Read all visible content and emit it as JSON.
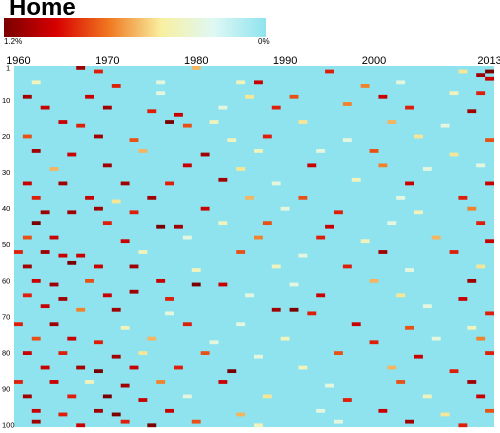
{
  "chart_data": {
    "type": "heatmap",
    "title": "Home",
    "colorbar": {
      "max_label": "1.2%",
      "min_label": "0%",
      "min_value": 0,
      "max_value": 1.2,
      "colors": [
        "#7a0000",
        "#d80000",
        "#f07820",
        "#f8f0a0",
        "#dff8f4",
        "#8fe3ee"
      ]
    },
    "x_range": [
      1960,
      2013
    ],
    "x_tick_labels": [
      {
        "label": "1960",
        "value": 1960
      },
      {
        "label": "1970",
        "value": 1970
      },
      {
        "label": "1980",
        "value": 1980
      },
      {
        "label": "1990",
        "value": 1990
      },
      {
        "label": "2000",
        "value": 2000
      },
      {
        "label": "2013",
        "value": 2013
      }
    ],
    "y_range": [
      1,
      100
    ],
    "y_tick_labels": [
      {
        "label": "1",
        "value": 1
      },
      {
        "label": "10",
        "value": 10
      },
      {
        "label": "20",
        "value": 20
      },
      {
        "label": "30",
        "value": 30
      },
      {
        "label": "40",
        "value": 40
      },
      {
        "label": "50",
        "value": 50
      },
      {
        "label": "60",
        "value": 60
      },
      {
        "label": "70",
        "value": 70
      },
      {
        "label": "80",
        "value": 80
      },
      {
        "label": "90",
        "value": 90
      },
      {
        "label": "100",
        "value": 100
      }
    ],
    "background_color": "#8fe3ee",
    "cells": [
      [
        1967,
        1,
        1.1
      ],
      [
        1969,
        2,
        0.9
      ],
      [
        1980,
        1,
        0.6
      ],
      [
        1995,
        2,
        0.9
      ],
      [
        2010,
        2,
        0.5
      ],
      [
        2012,
        3,
        1.1
      ],
      [
        2013,
        2,
        1.2
      ],
      [
        2013,
        4,
        1.0
      ],
      [
        1962,
        5,
        0.4
      ],
      [
        1976,
        5,
        0.3
      ],
      [
        1985,
        5,
        0.4
      ],
      [
        1971,
        6,
        0.9
      ],
      [
        1987,
        5,
        1.0
      ],
      [
        1999,
        6,
        0.7
      ],
      [
        2003,
        5,
        0.3
      ],
      [
        1961,
        9,
        1.1
      ],
      [
        1968,
        9,
        1.0
      ],
      [
        1976,
        8,
        0.3
      ],
      [
        1986,
        9,
        0.5
      ],
      [
        1991,
        9,
        0.8
      ],
      [
        2001,
        9,
        1.0
      ],
      [
        2009,
        8,
        0.4
      ],
      [
        2012,
        8,
        0.9
      ],
      [
        1963,
        12,
        1.0
      ],
      [
        1970,
        12,
        1.1
      ],
      [
        1975,
        13,
        0.9
      ],
      [
        1978,
        14,
        1.0
      ],
      [
        1983,
        12,
        0.3
      ],
      [
        1989,
        12,
        0.9
      ],
      [
        1997,
        11,
        0.7
      ],
      [
        2004,
        12,
        0.9
      ],
      [
        2011,
        13,
        1.1
      ],
      [
        1965,
        16,
        1.0
      ],
      [
        1967,
        17,
        0.9
      ],
      [
        1977,
        16,
        1.2
      ],
      [
        1979,
        17,
        0.8
      ],
      [
        1982,
        16,
        0.4
      ],
      [
        1992,
        16,
        0.5
      ],
      [
        2002,
        16,
        0.6
      ],
      [
        2008,
        17,
        0.3
      ],
      [
        1961,
        20,
        0.8
      ],
      [
        1969,
        20,
        1.1
      ],
      [
        1973,
        21,
        0.8
      ],
      [
        1984,
        21,
        0.4
      ],
      [
        1988,
        20,
        0.9
      ],
      [
        1997,
        21,
        0.3
      ],
      [
        2005,
        20,
        0.5
      ],
      [
        2013,
        21,
        0.8
      ],
      [
        1962,
        24,
        1.1
      ],
      [
        1966,
        25,
        1.0
      ],
      [
        1974,
        24,
        0.6
      ],
      [
        1981,
        25,
        1.1
      ],
      [
        1987,
        24,
        0.4
      ],
      [
        1994,
        24,
        0.3
      ],
      [
        2000,
        24,
        0.8
      ],
      [
        2009,
        25,
        0.5
      ],
      [
        1964,
        29,
        0.6
      ],
      [
        1970,
        28,
        1.1
      ],
      [
        1979,
        28,
        1.0
      ],
      [
        1985,
        29,
        0.5
      ],
      [
        1993,
        28,
        1.0
      ],
      [
        2001,
        28,
        0.7
      ],
      [
        2006,
        29,
        0.3
      ],
      [
        2012,
        28,
        0.3
      ],
      [
        1961,
        33,
        1.0
      ],
      [
        1965,
        33,
        1.1
      ],
      [
        1972,
        33,
        1.1
      ],
      [
        1977,
        33,
        0.9
      ],
      [
        1983,
        32,
        1.1
      ],
      [
        1989,
        33,
        0.3
      ],
      [
        1998,
        32,
        0.4
      ],
      [
        2004,
        33,
        1.0
      ],
      [
        2013,
        33,
        1.0
      ],
      [
        1962,
        37,
        0.9
      ],
      [
        1968,
        37,
        1.0
      ],
      [
        1971,
        38,
        0.5
      ],
      [
        1975,
        37,
        1.1
      ],
      [
        1986,
        37,
        0.6
      ],
      [
        1992,
        37,
        0.8
      ],
      [
        2003,
        37,
        0.3
      ],
      [
        2010,
        37,
        0.9
      ],
      [
        1963,
        41,
        1.1
      ],
      [
        1966,
        41,
        1.1
      ],
      [
        1969,
        40,
        1.1
      ],
      [
        1973,
        41,
        0.9
      ],
      [
        1981,
        40,
        1.0
      ],
      [
        1990,
        40,
        0.3
      ],
      [
        1996,
        41,
        0.9
      ],
      [
        2005,
        41,
        0.4
      ],
      [
        2011,
        40,
        0.7
      ],
      [
        1962,
        44,
        1.2
      ],
      [
        1970,
        44,
        0.9
      ],
      [
        1976,
        45,
        1.2
      ],
      [
        1978,
        45,
        1.1
      ],
      [
        1983,
        44,
        0.4
      ],
      [
        1988,
        44,
        0.8
      ],
      [
        1995,
        45,
        1.0
      ],
      [
        2002,
        44,
        0.3
      ],
      [
        2012,
        44,
        0.9
      ],
      [
        1961,
        48,
        0.8
      ],
      [
        1964,
        48,
        1.0
      ],
      [
        1972,
        49,
        1.0
      ],
      [
        1979,
        48,
        0.3
      ],
      [
        1987,
        48,
        0.7
      ],
      [
        1994,
        48,
        0.9
      ],
      [
        1999,
        49,
        0.4
      ],
      [
        2007,
        48,
        0.6
      ],
      [
        2013,
        49,
        1.0
      ],
      [
        1960,
        52,
        0.9
      ],
      [
        1963,
        52,
        1.1
      ],
      [
        1965,
        53,
        1.0
      ],
      [
        1967,
        53,
        1.0
      ],
      [
        1974,
        52,
        0.4
      ],
      [
        1985,
        52,
        0.8
      ],
      [
        1992,
        53,
        0.3
      ],
      [
        2001,
        52,
        1.1
      ],
      [
        2009,
        52,
        0.9
      ],
      [
        1961,
        56,
        1.1
      ],
      [
        1966,
        55,
        1.2
      ],
      [
        1969,
        56,
        1.0
      ],
      [
        1973,
        56,
        1.1
      ],
      [
        1980,
        57,
        0.4
      ],
      [
        1989,
        56,
        0.4
      ],
      [
        1997,
        56,
        0.9
      ],
      [
        2004,
        57,
        0.3
      ],
      [
        2012,
        56,
        0.5
      ],
      [
        1962,
        60,
        1.0
      ],
      [
        1964,
        61,
        1.1
      ],
      [
        1968,
        60,
        0.8
      ],
      [
        1976,
        60,
        1.0
      ],
      [
        1980,
        61,
        1.2
      ],
      [
        1983,
        61,
        1.0
      ],
      [
        1991,
        61,
        0.3
      ],
      [
        2000,
        60,
        0.6
      ],
      [
        2011,
        60,
        1.1
      ],
      [
        1961,
        64,
        0.9
      ],
      [
        1965,
        65,
        1.1
      ],
      [
        1970,
        64,
        1.0
      ],
      [
        1973,
        63,
        1.1
      ],
      [
        1977,
        65,
        0.9
      ],
      [
        1986,
        64,
        0.3
      ],
      [
        1994,
        64,
        1.0
      ],
      [
        2003,
        64,
        0.5
      ],
      [
        2010,
        65,
        1.0
      ],
      [
        1963,
        67,
        1.0
      ],
      [
        1967,
        68,
        0.7
      ],
      [
        1971,
        68,
        1.1
      ],
      [
        1977,
        69,
        0.3
      ],
      [
        1989,
        68,
        1.1
      ],
      [
        1991,
        68,
        1.2
      ],
      [
        1993,
        69,
        0.9
      ],
      [
        2006,
        67,
        0.3
      ],
      [
        2013,
        69,
        0.9
      ],
      [
        1960,
        72,
        0.9
      ],
      [
        1964,
        72,
        1.1
      ],
      [
        1972,
        73,
        0.4
      ],
      [
        1979,
        72,
        0.9
      ],
      [
        1985,
        72,
        0.3
      ],
      [
        1998,
        72,
        1.0
      ],
      [
        2004,
        73,
        0.8
      ],
      [
        2011,
        73,
        0.4
      ],
      [
        1962,
        76,
        0.8
      ],
      [
        1966,
        76,
        1.0
      ],
      [
        1969,
        77,
        0.9
      ],
      [
        1975,
        76,
        0.6
      ],
      [
        1982,
        77,
        0.3
      ],
      [
        1990,
        76,
        0.4
      ],
      [
        2000,
        77,
        0.9
      ],
      [
        2007,
        76,
        0.3
      ],
      [
        2012,
        76,
        0.7
      ],
      [
        1961,
        80,
        1.0
      ],
      [
        1965,
        80,
        0.9
      ],
      [
        1971,
        81,
        1.1
      ],
      [
        1974,
        80,
        0.5
      ],
      [
        1981,
        80,
        0.8
      ],
      [
        1987,
        81,
        0.3
      ],
      [
        1996,
        80,
        0.8
      ],
      [
        2005,
        81,
        1.0
      ],
      [
        2013,
        80,
        0.9
      ],
      [
        1963,
        84,
        1.0
      ],
      [
        1967,
        84,
        1.1
      ],
      [
        1969,
        85,
        1.2
      ],
      [
        1973,
        84,
        1.0
      ],
      [
        1978,
        84,
        0.9
      ],
      [
        1984,
        85,
        1.2
      ],
      [
        1992,
        84,
        0.4
      ],
      [
        2002,
        84,
        0.6
      ],
      [
        2009,
        85,
        0.9
      ],
      [
        1960,
        88,
        0.9
      ],
      [
        1964,
        88,
        1.0
      ],
      [
        1968,
        88,
        0.4
      ],
      [
        1972,
        89,
        1.1
      ],
      [
        1976,
        88,
        0.7
      ],
      [
        1983,
        88,
        1.0
      ],
      [
        1995,
        89,
        0.3
      ],
      [
        2003,
        88,
        0.8
      ],
      [
        2011,
        88,
        1.1
      ],
      [
        1961,
        92,
        1.1
      ],
      [
        1966,
        92,
        0.9
      ],
      [
        1970,
        92,
        1.2
      ],
      [
        1974,
        93,
        1.0
      ],
      [
        1979,
        92,
        0.3
      ],
      [
        1988,
        92,
        0.5
      ],
      [
        1997,
        93,
        0.9
      ],
      [
        2006,
        92,
        0.4
      ],
      [
        2012,
        92,
        1.0
      ],
      [
        1962,
        96,
        1.0
      ],
      [
        1965,
        97,
        0.9
      ],
      [
        1969,
        96,
        1.1
      ],
      [
        1971,
        97,
        1.2
      ],
      [
        1977,
        96,
        1.0
      ],
      [
        1985,
        97,
        0.6
      ],
      [
        1994,
        96,
        0.3
      ],
      [
        2001,
        96,
        1.0
      ],
      [
        2008,
        97,
        0.5
      ],
      [
        2013,
        96,
        0.8
      ],
      [
        1962,
        99,
        1.1
      ],
      [
        1967,
        100,
        1.0
      ],
      [
        1972,
        99,
        0.9
      ],
      [
        1975,
        100,
        1.2
      ],
      [
        1980,
        99,
        0.8
      ],
      [
        1987,
        100,
        0.4
      ],
      [
        1996,
        99,
        0.3
      ],
      [
        2004,
        99,
        1.1
      ],
      [
        2010,
        100,
        0.9
      ]
    ]
  }
}
